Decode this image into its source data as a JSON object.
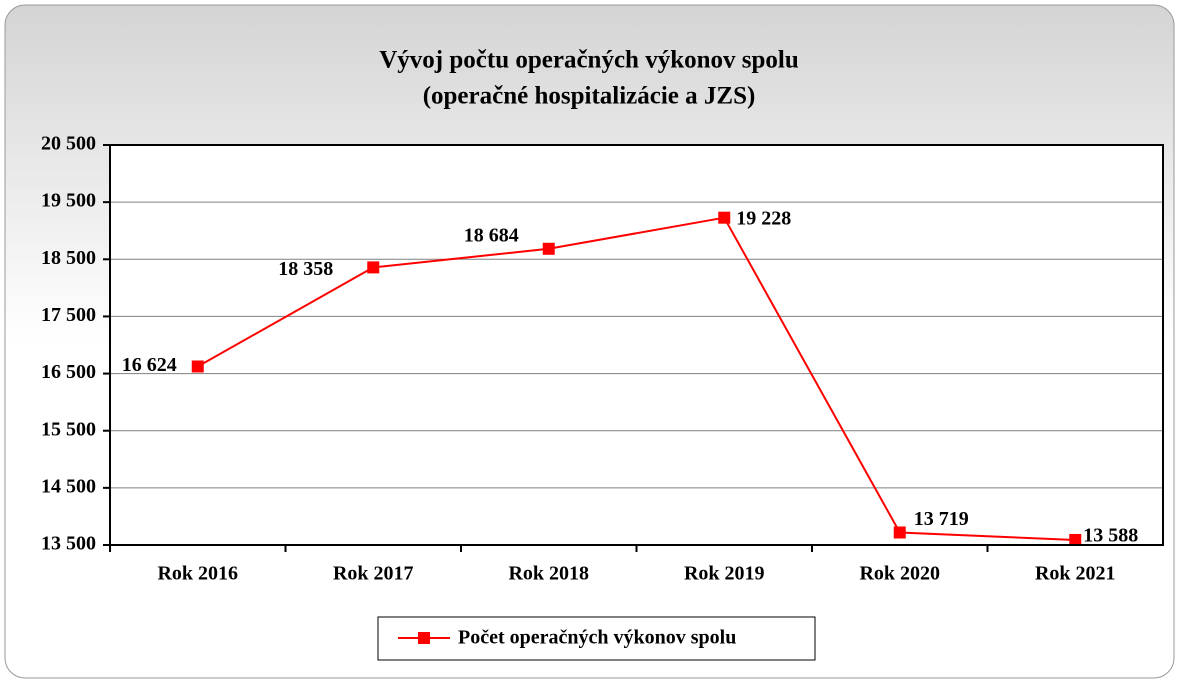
{
  "chart_data": {
    "type": "line",
    "title": "Vývoj počtu operačných výkonov  spolu",
    "subtitle": "(operačné hospitalizácie a JZS)",
    "categories": [
      "Rok 2016",
      "Rok 2017",
      "Rok 2018",
      "Rok 2019",
      "Rok 2020",
      "Rok 2021"
    ],
    "series": [
      {
        "name": "Počet operačných výkonov spolu",
        "color": "#ff0000",
        "values": [
          16624,
          18358,
          18684,
          19228,
          13719,
          13588
        ],
        "value_labels": [
          "16 624",
          "18 358",
          "18 684",
          "19 228",
          "13 719",
          "13 588"
        ]
      }
    ],
    "ylim": [
      13500,
      20500
    ],
    "yticks": [
      {
        "value": 13500,
        "label": "13 500"
      },
      {
        "value": 14500,
        "label": "14 500"
      },
      {
        "value": 15500,
        "label": "15 500"
      },
      {
        "value": 16500,
        "label": "16 500"
      },
      {
        "value": 17500,
        "label": "17 500"
      },
      {
        "value": 18500,
        "label": "18 500"
      },
      {
        "value": 19500,
        "label": "19 500"
      },
      {
        "value": 20500,
        "label": "20 500"
      }
    ],
    "grid": true,
    "legend": "bottom"
  }
}
